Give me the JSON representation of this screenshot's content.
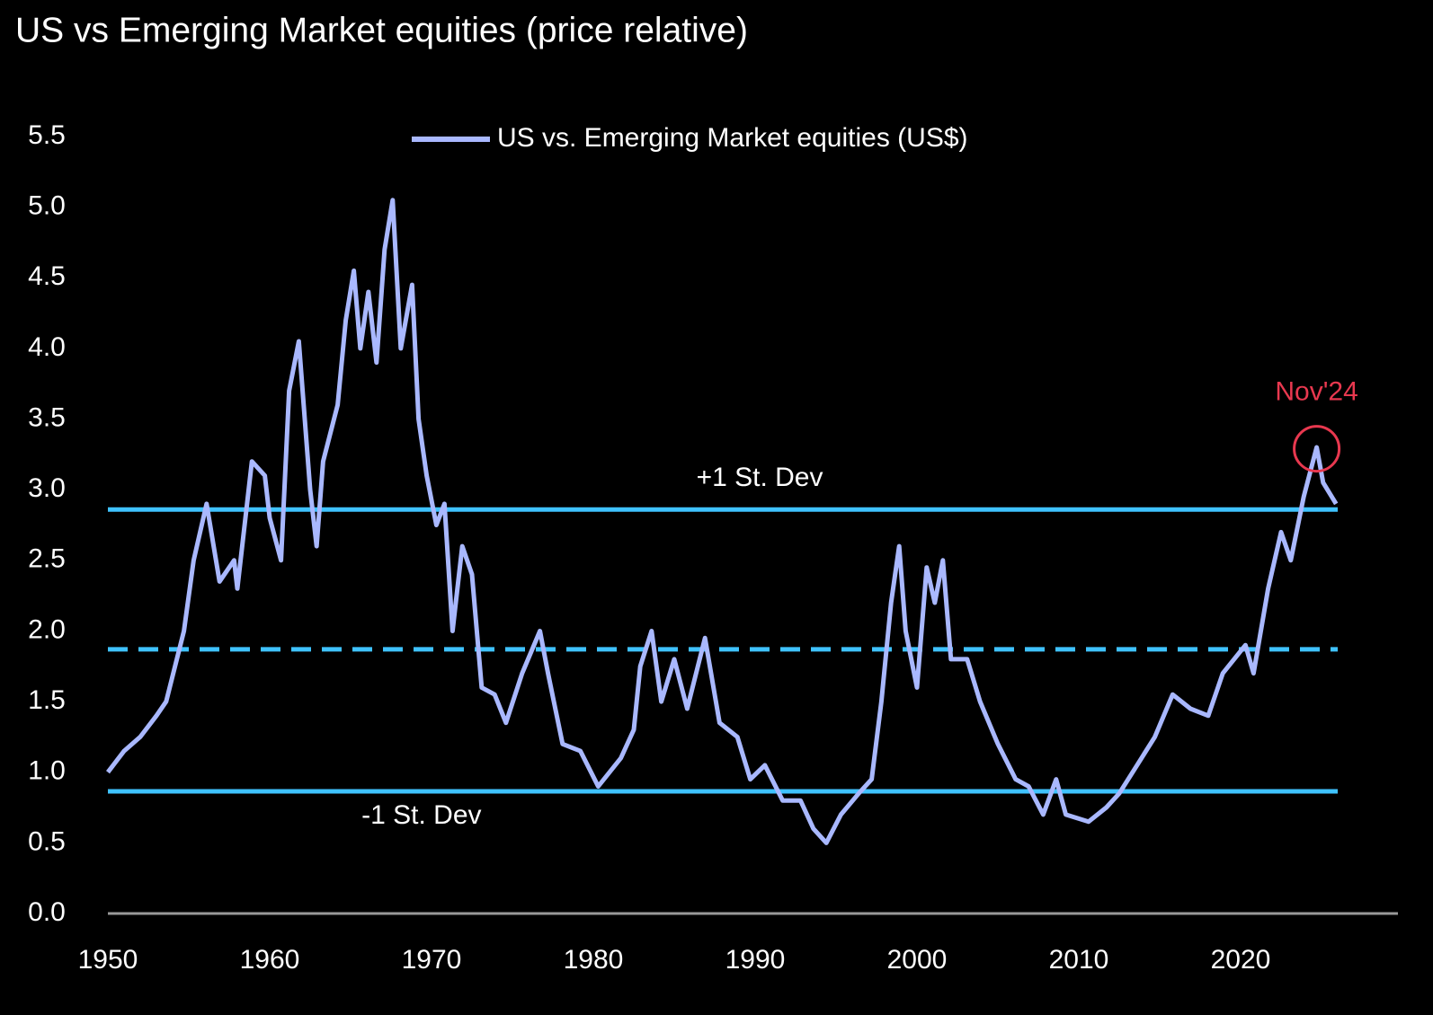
{
  "chart_data": {
    "type": "line",
    "title": "US vs Emerging Market equities (price relative)",
    "xlim": [
      1950,
      2030
    ],
    "xticks": [
      1950,
      1960,
      1970,
      1980,
      1990,
      2000,
      2010,
      2020
    ],
    "ylim": [
      0,
      5.5
    ],
    "yticks": [
      {
        "value": 0,
        "label": "0.0"
      },
      0.5,
      {
        "value": 1,
        "label": "1.0"
      },
      1.5,
      {
        "value": 2,
        "label": "2.0"
      },
      2.5,
      {
        "value": 3,
        "label": "3.0"
      },
      3.5,
      {
        "value": 4,
        "label": "4.0"
      },
      4.5,
      {
        "value": 5,
        "label": "5.0"
      },
      5.5
    ],
    "grid": false,
    "legend": "top",
    "series": [
      {
        "name": "US vs. Emerging Market equities (US$)",
        "color": "#a9b8ff",
        "x": [
          1950,
          1951,
          1952,
          1953,
          1953.6,
          1954.7,
          1955.3,
          1956.1,
          1956.9,
          1957.8,
          1958,
          1958.9,
          1959.7,
          1960,
          1960.7,
          1961.2,
          1961.8,
          1962.5,
          1962.9,
          1963.3,
          1964.2,
          1964.7,
          1965.2,
          1965.6,
          1966.1,
          1966.6,
          1967.1,
          1967.6,
          1968.1,
          1968.8,
          1969.2,
          1969.7,
          1970.3,
          1970.8,
          1971.3,
          1971.9,
          1972.5,
          1973.1,
          1973.9,
          1974.6,
          1975.6,
          1976.7,
          1977.2,
          1978.1,
          1979.2,
          1980.3,
          1981.7,
          1982.5,
          1982.9,
          1983.6,
          1984.2,
          1985,
          1985.8,
          1986.9,
          1987.8,
          1988.9,
          1989.7,
          1990.6,
          1991.7,
          1992.8,
          1993.6,
          1994.4,
          1995.3,
          1996.4,
          1997.2,
          1997.8,
          1998.4,
          1998.9,
          1999.3,
          2000,
          2000.6,
          2001.1,
          2001.6,
          2002.1,
          2003.1,
          2003.9,
          2005,
          2006.1,
          2006.9,
          2007.8,
          2008.6,
          2009.2,
          2010.6,
          2011.7,
          2012.5,
          2013.6,
          2014.7,
          2015.8,
          2016.9,
          2018,
          2018.9,
          2020.3,
          2020.8,
          2021.7,
          2022.5,
          2023.1,
          2023.9,
          2024.7,
          2025.1,
          2025.9
        ],
        "values": [
          1.0,
          1.15,
          1.25,
          1.4,
          1.5,
          2.0,
          2.5,
          2.9,
          2.35,
          2.5,
          2.3,
          3.2,
          3.1,
          2.8,
          2.5,
          3.7,
          4.05,
          3.0,
          2.6,
          3.2,
          3.6,
          4.2,
          4.55,
          4.0,
          4.4,
          3.9,
          4.7,
          5.05,
          4.0,
          4.45,
          3.5,
          3.1,
          2.75,
          2.9,
          2.0,
          2.6,
          2.4,
          1.6,
          1.55,
          1.35,
          1.7,
          2.0,
          1.7,
          1.2,
          1.15,
          0.9,
          1.1,
          1.3,
          1.75,
          2.0,
          1.5,
          1.8,
          1.45,
          1.95,
          1.35,
          1.25,
          0.95,
          1.05,
          0.8,
          0.8,
          0.6,
          0.5,
          0.7,
          0.85,
          0.95,
          1.5,
          2.2,
          2.6,
          2.0,
          1.6,
          2.45,
          2.2,
          2.5,
          1.8,
          1.8,
          1.5,
          1.2,
          0.95,
          0.9,
          0.7,
          0.95,
          0.7,
          0.65,
          0.75,
          0.85,
          1.05,
          1.25,
          1.55,
          1.45,
          1.4,
          1.7,
          1.9,
          1.7,
          2.3,
          2.7,
          2.5,
          2.95,
          3.3,
          3.05,
          2.9
        ]
      }
    ],
    "reference_lines": [
      {
        "label": "+1 St. Dev",
        "value": 2.86,
        "x": [
          1950,
          2026
        ],
        "color": "#3fc2ff",
        "style": "solid"
      },
      {
        "value": 1.87,
        "x": [
          1950,
          2026
        ],
        "color": "#3fc2ff",
        "style": "dashed"
      },
      {
        "label": "-1 St. Dev",
        "value": 0.865,
        "x": [
          1950,
          2026
        ],
        "color": "#3fc2ff",
        "style": "solid"
      }
    ],
    "annotations": [
      {
        "text": "Nov'24",
        "x": 2024.7,
        "y": 3.29,
        "color": "#e8384f"
      }
    ]
  }
}
